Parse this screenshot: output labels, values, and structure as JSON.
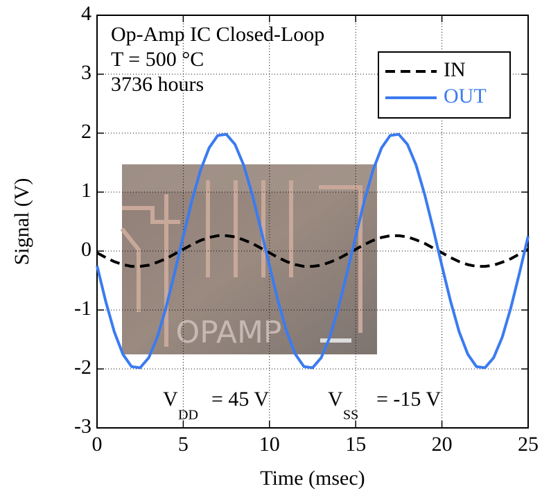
{
  "chart_data": {
    "type": "line",
    "x_label": "Time (msec)",
    "y_label": "Signal (V)",
    "annotations": [
      "Op-Amp IC Closed-Loop",
      "T = 500 °C",
      "3736 hours"
    ],
    "supply_labels": [
      {
        "symbol": "V",
        "subscript": "DD",
        "text": "= 45 V"
      },
      {
        "symbol": "V",
        "subscript": "SS",
        "text": "= -15 V"
      }
    ],
    "inset_label": "OPAMP",
    "x": [
      0,
      0.5,
      1,
      1.5,
      2,
      2.5,
      3,
      3.5,
      4,
      4.5,
      5,
      5.5,
      6,
      6.5,
      7,
      7.5,
      8,
      8.5,
      9,
      9.5,
      10,
      10.5,
      11,
      11.5,
      12,
      12.5,
      13,
      13.5,
      14,
      14.5,
      15,
      15.5,
      16,
      16.5,
      17,
      17.5,
      18,
      18.5,
      19,
      19.5,
      20,
      20.5,
      21,
      21.5,
      22,
      22.5,
      23,
      23.5,
      24,
      24.5,
      25
    ],
    "series": [
      {
        "name": "IN",
        "color": "#000000",
        "dashed": true,
        "values": [
          -0.03,
          -0.11,
          -0.18,
          -0.23,
          -0.26,
          -0.26,
          -0.24,
          -0.19,
          -0.13,
          -0.05,
          0.03,
          0.11,
          0.18,
          0.23,
          0.26,
          0.26,
          0.24,
          0.19,
          0.13,
          0.05,
          -0.03,
          -0.11,
          -0.18,
          -0.23,
          -0.26,
          -0.26,
          -0.24,
          -0.19,
          -0.13,
          -0.05,
          0.03,
          0.11,
          0.18,
          0.23,
          0.26,
          0.26,
          0.24,
          0.19,
          0.13,
          0.05,
          -0.03,
          -0.11,
          -0.18,
          -0.23,
          -0.26,
          -0.26,
          -0.24,
          -0.19,
          -0.13,
          -0.05,
          0.03
        ]
      },
      {
        "name": "OUT",
        "color": "#3b7bf0",
        "dashed": false,
        "values": [
          -0.25,
          -0.85,
          -1.37,
          -1.75,
          -1.96,
          -1.98,
          -1.81,
          -1.46,
          -0.96,
          -0.37,
          0.25,
          0.85,
          1.37,
          1.75,
          1.96,
          1.98,
          1.81,
          1.46,
          0.96,
          0.37,
          -0.25,
          -0.85,
          -1.37,
          -1.75,
          -1.96,
          -1.98,
          -1.81,
          -1.46,
          -0.96,
          -0.37,
          0.25,
          0.85,
          1.37,
          1.75,
          1.96,
          1.98,
          1.81,
          1.46,
          0.96,
          0.37,
          -0.25,
          -0.85,
          -1.37,
          -1.75,
          -1.96,
          -1.98,
          -1.81,
          -1.46,
          -0.96,
          -0.37,
          0.25
        ]
      }
    ],
    "xlim": [
      0,
      25
    ],
    "xticks": [
      0,
      5,
      10,
      15,
      20,
      25
    ],
    "ylim": [
      -3,
      4
    ],
    "yticks": [
      -3,
      -2,
      -1,
      0,
      1,
      2,
      3,
      4
    ],
    "grid": true,
    "legend": "upper right"
  }
}
